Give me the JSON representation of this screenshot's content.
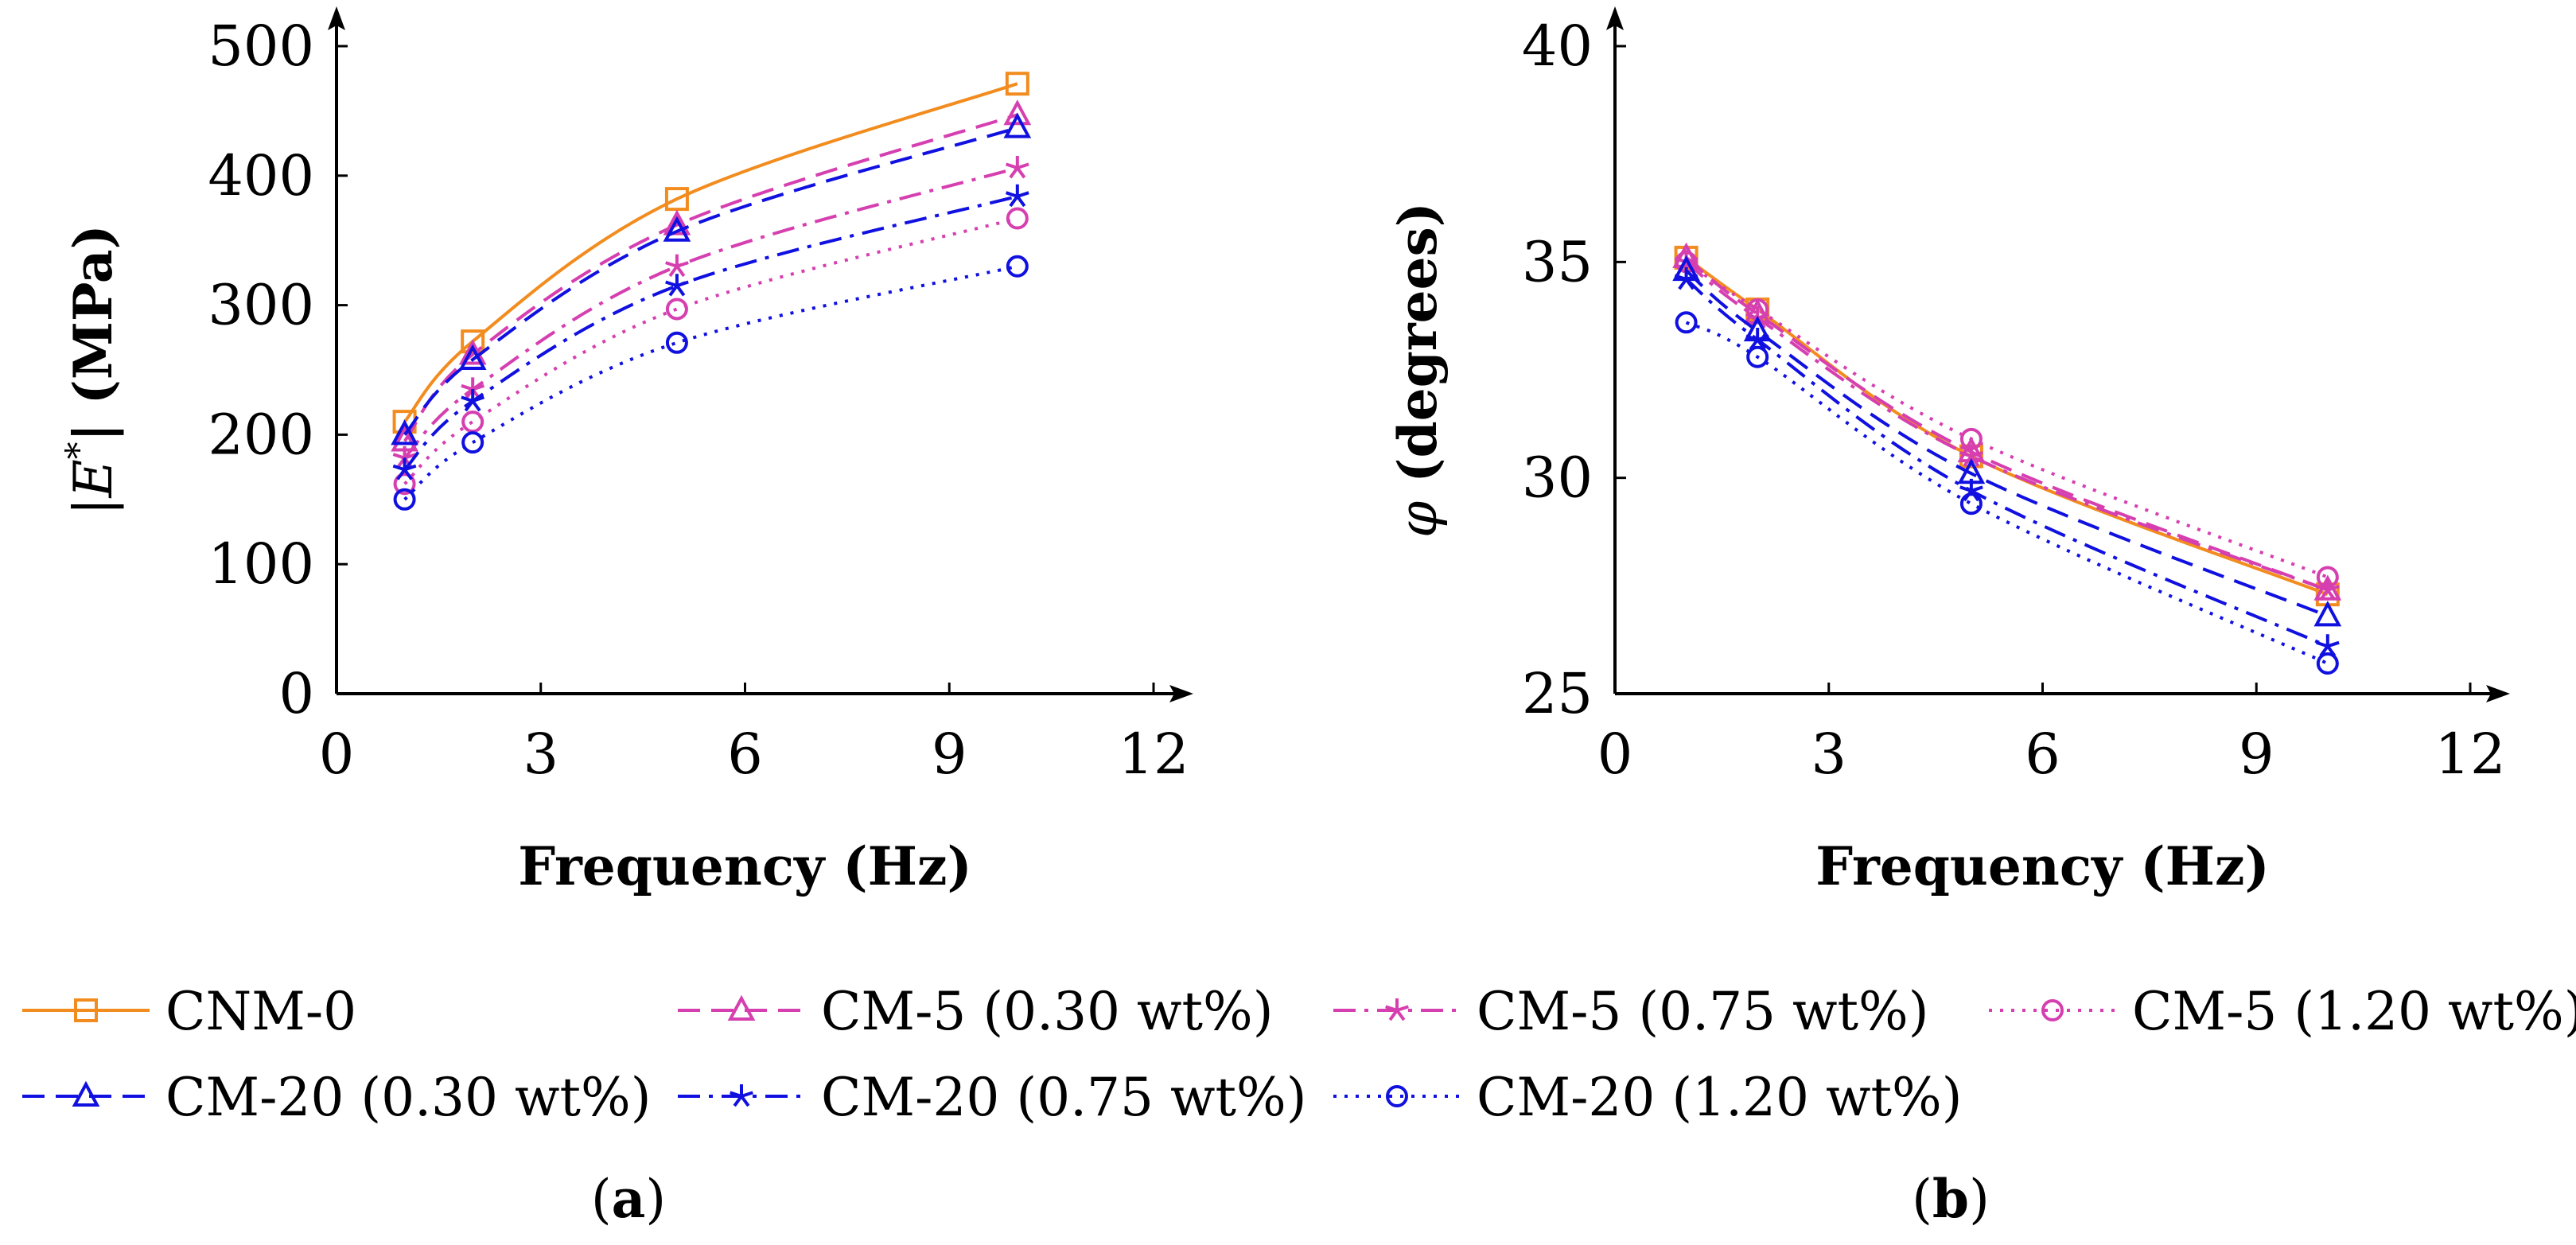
{
  "chart_data": [
    {
      "type": "line",
      "panel": "a",
      "panel_label": {
        "open": "(",
        "letter": "a",
        "close": ")"
      },
      "xlabel": "Frequency (Hz)",
      "ylabel_prefix": "|E",
      "ylabel_sup": "*",
      "ylabel_suffix": "| (MPa)",
      "xlim": [
        0,
        12
      ],
      "ylim": [
        0,
        500
      ],
      "xticks": [
        0,
        3,
        6,
        9,
        12
      ],
      "yticks": [
        0,
        100,
        200,
        300,
        400,
        500
      ],
      "x": [
        1,
        2,
        5,
        10
      ],
      "series": [
        {
          "name": "CNM-0",
          "values": [
            210,
            272,
            382,
            471
          ],
          "color": "#f28c1e",
          "dash": "solid",
          "marker": "square"
        },
        {
          "name": "CM-5 (0.30 wt%)",
          "values": [
            195,
            262,
            362,
            447
          ],
          "color": "#d63fb0",
          "dash": "dashed",
          "marker": "triangle"
        },
        {
          "name": "CM-5 (0.75 wt%)",
          "values": [
            182,
            235,
            330,
            406
          ],
          "color": "#d63fb0",
          "dash": "dashdot",
          "marker": "star"
        },
        {
          "name": "CM-5 (1.20 wt%)",
          "values": [
            162,
            210,
            297,
            367
          ],
          "color": "#d63fb0",
          "dash": "dotted",
          "marker": "circle"
        },
        {
          "name": "CM-20 (0.30 wt%)",
          "values": [
            200,
            258,
            357,
            437
          ],
          "color": "#1010e0",
          "dash": "dashed",
          "marker": "triangle"
        },
        {
          "name": "CM-20 (0.75 wt%)",
          "values": [
            173,
            226,
            315,
            384
          ],
          "color": "#1010e0",
          "dash": "dashdot",
          "marker": "star"
        },
        {
          "name": "CM-20 (1.20 wt%)",
          "values": [
            150,
            194,
            271,
            330
          ],
          "color": "#1010e0",
          "dash": "dotted",
          "marker": "circle"
        }
      ]
    },
    {
      "type": "line",
      "panel": "b",
      "panel_label": {
        "open": "(",
        "letter": "b",
        "close": ")"
      },
      "xlabel": "Frequency (Hz)",
      "ylabel_symbol": "φ",
      "ylabel_suffix": " (degrees)",
      "xlim": [
        0,
        12
      ],
      "ylim": [
        25,
        40
      ],
      "xticks": [
        0,
        3,
        6,
        9,
        12
      ],
      "yticks": [
        25,
        30,
        35,
        40
      ],
      "x": [
        1,
        2,
        5,
        10
      ],
      "series": [
        {
          "name": "CNM-0",
          "values": [
            35.1,
            33.9,
            30.5,
            27.3
          ],
          "color": "#f28c1e",
          "dash": "solid",
          "marker": "square"
        },
        {
          "name": "CM-5 (0.30 wt%)",
          "values": [
            35.1,
            33.8,
            30.6,
            27.4
          ],
          "color": "#d63fb0",
          "dash": "dashed",
          "marker": "triangle"
        },
        {
          "name": "CM-5 (0.75 wt%)",
          "values": [
            35.0,
            33.7,
            30.5,
            27.4
          ],
          "color": "#d63fb0",
          "dash": "dashdot",
          "marker": "star"
        },
        {
          "name": "CM-5 (1.20 wt%)",
          "values": [
            35.0,
            33.9,
            30.9,
            27.7
          ],
          "color": "#d63fb0",
          "dash": "dotted",
          "marker": "circle"
        },
        {
          "name": "CM-20 (0.30 wt%)",
          "values": [
            34.8,
            33.4,
            30.1,
            26.8
          ],
          "color": "#1010e0",
          "dash": "dashed",
          "marker": "triangle"
        },
        {
          "name": "CM-20 (0.75 wt%)",
          "values": [
            34.6,
            33.2,
            29.7,
            26.1
          ],
          "color": "#1010e0",
          "dash": "dashdot",
          "marker": "star"
        },
        {
          "name": "CM-20 (1.20 wt%)",
          "values": [
            33.6,
            32.8,
            29.4,
            25.7
          ],
          "color": "#1010e0",
          "dash": "dotted",
          "marker": "circle"
        }
      ]
    }
  ],
  "legend": [
    {
      "label": "CNM-0",
      "color": "#f28c1e",
      "dash": "solid",
      "marker": "square"
    },
    {
      "label": "CM-5 (0.30 wt%)",
      "color": "#d63fb0",
      "dash": "dashed",
      "marker": "triangle"
    },
    {
      "label": "CM-5 (0.75 wt%)",
      "color": "#d63fb0",
      "dash": "dashdot",
      "marker": "star"
    },
    {
      "label": "CM-5 (1.20 wt%)",
      "color": "#d63fb0",
      "dash": "dotted",
      "marker": "circle"
    },
    {
      "label": "CM-20 (0.30 wt%)",
      "color": "#1010e0",
      "dash": "dashed",
      "marker": "triangle"
    },
    {
      "label": "CM-20 (0.75 wt%)",
      "color": "#1010e0",
      "dash": "dashdot",
      "marker": "star"
    },
    {
      "label": "CM-20 (1.20 wt%)",
      "color": "#1010e0",
      "dash": "dotted",
      "marker": "circle"
    }
  ]
}
